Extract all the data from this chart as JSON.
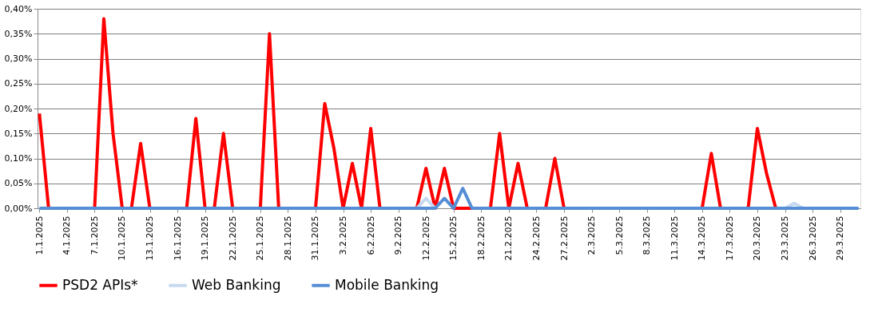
{
  "chart_data": {
    "type": "line",
    "categories": [
      "1.1.2025",
      null,
      null,
      "4.1.2025",
      null,
      null,
      "7.1.2025",
      null,
      null,
      "10.1.2025",
      null,
      null,
      "13.1.2025",
      null,
      null,
      "16.1.2025",
      null,
      null,
      "19.1.2025",
      null,
      null,
      "22.1.2025",
      null,
      null,
      "25.1.2025",
      null,
      null,
      "28.1.2025",
      null,
      null,
      "31.1.2025",
      null,
      null,
      "3.2.2025",
      null,
      null,
      "6.2.2025",
      null,
      null,
      "9.2.2025",
      null,
      null,
      "12.2.2025",
      null,
      null,
      "15.2.2025",
      null,
      null,
      "18.2.2025",
      null,
      null,
      "21.2.2025",
      null,
      null,
      "24.2.2025",
      null,
      null,
      "27.2.2025",
      null,
      null,
      "2.3.2025",
      null,
      null,
      "5.3.2025",
      null,
      null,
      "8.3.2025",
      null,
      null,
      "11.3.2025",
      null,
      null,
      "14.3.2025",
      null,
      null,
      "17.3.2025",
      null,
      null,
      "20.3.2025",
      null,
      null,
      "23.3.2025",
      null,
      null,
      "26.3.2025",
      null,
      null,
      "29.3.2025",
      null,
      null
    ],
    "series": [
      {
        "name": "PSD2 APIs*",
        "color": "#ff0000",
        "values": [
          0.19,
          0,
          0,
          0,
          0,
          0,
          0,
          0.38,
          0.15,
          0,
          0,
          0.13,
          0,
          0,
          0,
          0,
          0,
          0.18,
          0,
          0,
          0.15,
          0,
          0,
          0,
          0,
          0.35,
          0,
          0,
          0,
          0,
          0,
          0.21,
          0.12,
          0,
          0.09,
          0,
          0.16,
          0,
          0,
          0,
          0,
          0,
          0.08,
          0,
          0.08,
          0,
          0,
          0,
          0,
          0,
          0.15,
          0,
          0.09,
          0,
          0,
          0,
          0.1,
          0,
          0,
          0,
          0,
          0,
          0,
          0,
          0,
          0,
          0,
          0,
          0,
          0,
          0,
          0,
          0,
          0.11,
          0,
          0,
          0,
          0,
          0.16,
          0.07,
          0,
          0,
          0,
          null,
          null,
          null,
          null,
          null,
          null,
          null
        ]
      },
      {
        "name": "Web Banking",
        "color": "#c6d9f1",
        "values": [
          null,
          null,
          null,
          null,
          null,
          null,
          null,
          null,
          null,
          null,
          null,
          null,
          null,
          null,
          null,
          null,
          null,
          null,
          null,
          null,
          null,
          null,
          null,
          null,
          null,
          null,
          null,
          null,
          null,
          null,
          null,
          null,
          null,
          null,
          null,
          null,
          null,
          null,
          null,
          null,
          null,
          0,
          0.02,
          0,
          null,
          null,
          null,
          null,
          null,
          null,
          null,
          null,
          null,
          null,
          null,
          null,
          null,
          null,
          null,
          null,
          null,
          null,
          null,
          null,
          null,
          null,
          null,
          null,
          null,
          null,
          null,
          null,
          null,
          null,
          null,
          null,
          null,
          null,
          null,
          null,
          null,
          0,
          0.01,
          0,
          null,
          null,
          null,
          null,
          null,
          null
        ]
      },
      {
        "name": "Mobile Banking",
        "color": "#558ed5",
        "values": [
          0,
          0,
          0,
          0,
          0,
          0,
          0,
          0,
          0,
          0,
          0,
          0,
          0,
          0,
          0,
          0,
          0,
          0,
          0,
          0,
          0,
          0,
          0,
          0,
          0,
          0,
          0,
          0,
          0,
          0,
          0,
          0,
          0,
          0,
          0,
          0,
          0,
          0,
          0,
          0,
          0,
          0,
          0,
          0,
          0.02,
          0,
          0.04,
          0,
          0,
          0,
          0,
          0,
          0,
          0,
          0,
          0,
          0,
          0,
          0,
          0,
          0,
          0,
          0,
          0,
          0,
          0,
          0,
          0,
          0,
          0,
          0,
          0,
          0,
          0,
          0,
          0,
          0,
          0,
          0,
          0,
          0,
          0,
          0,
          0,
          0,
          0,
          0,
          0,
          0,
          0
        ]
      }
    ],
    "ylim": [
      0,
      0.4
    ],
    "yticks": [
      {
        "value": 0,
        "label": "0,00%"
      },
      {
        "value": 0.05,
        "label": "0,05%"
      },
      {
        "value": 0.1,
        "label": "0,10%"
      },
      {
        "value": 0.15,
        "label": "0,15%"
      },
      {
        "value": 0.2,
        "label": "0,20%"
      },
      {
        "value": 0.25,
        "label": "0,25%"
      },
      {
        "value": 0.3,
        "label": "0,30%"
      },
      {
        "value": 0.35,
        "label": "0,35%"
      },
      {
        "value": 0.4,
        "label": "0,40%"
      }
    ],
    "grid": "y",
    "legend": "bottom",
    "marker": "none",
    "line_style": "solid"
  }
}
